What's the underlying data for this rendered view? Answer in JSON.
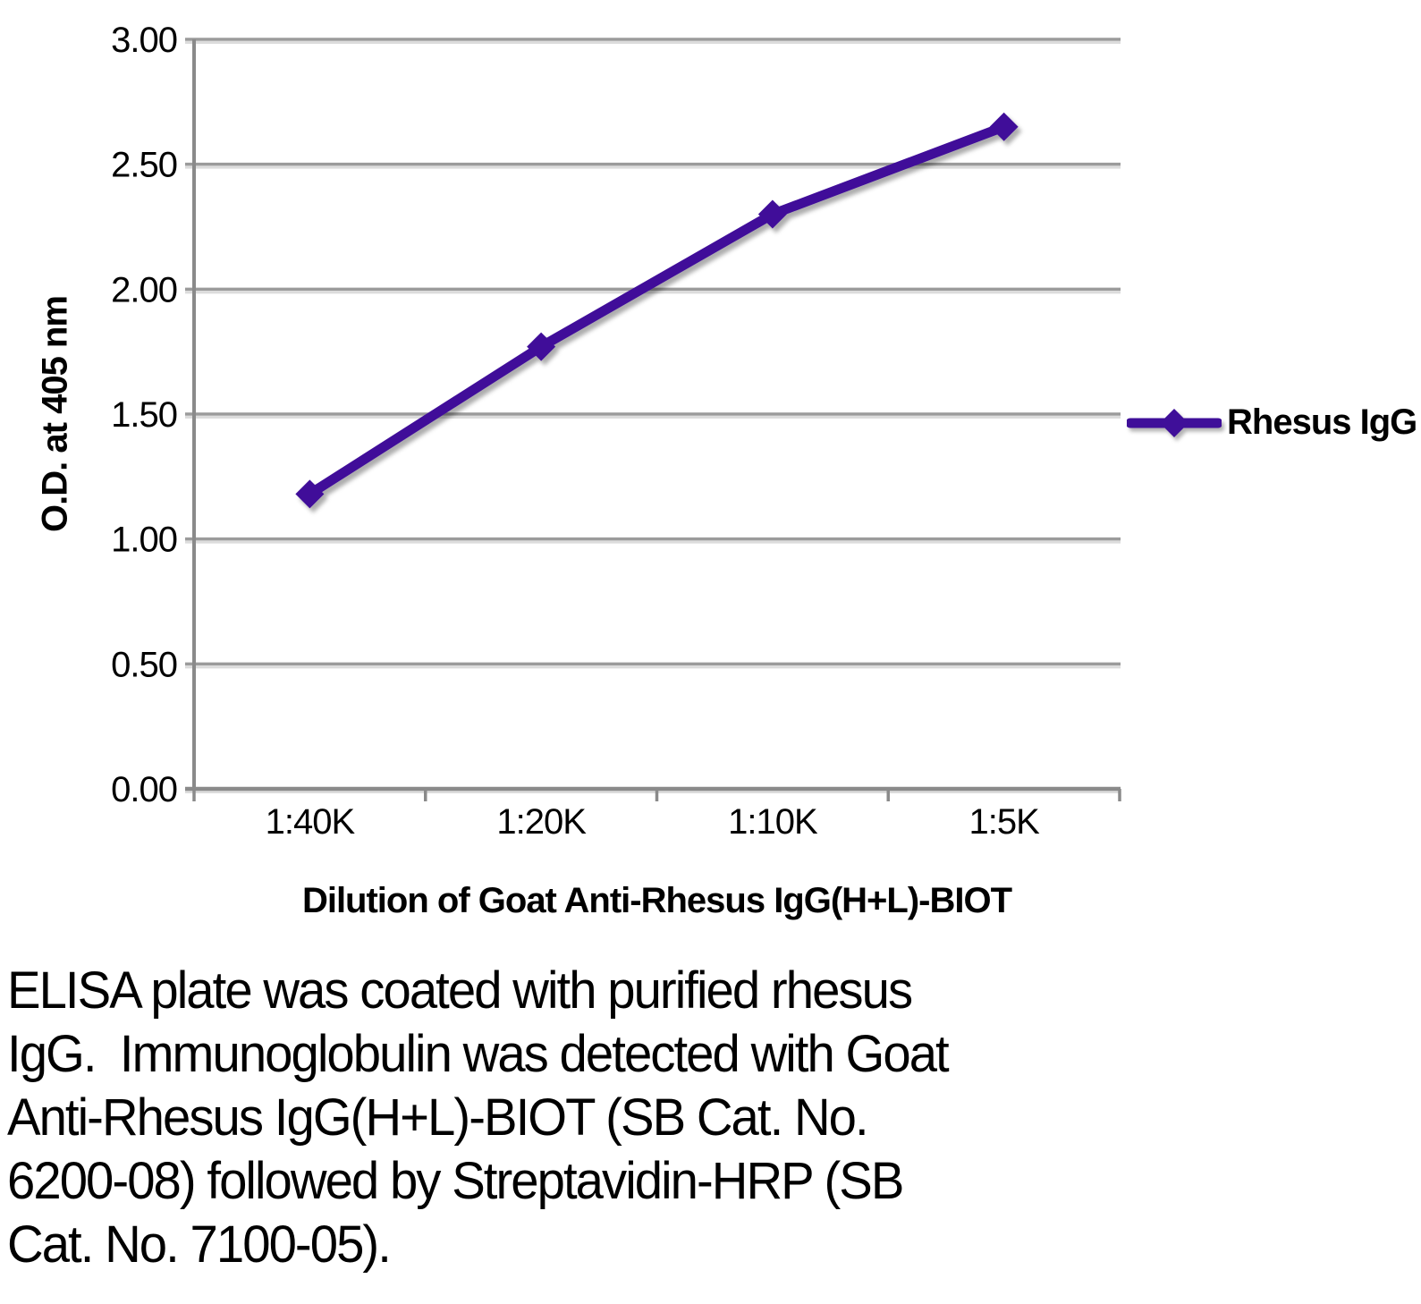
{
  "chart_data": {
    "type": "line",
    "categories": [
      "1:40K",
      "1:20K",
      "1:10K",
      "1:5K"
    ],
    "series": [
      {
        "name": "Rhesus IgG",
        "values": [
          1.18,
          1.77,
          2.3,
          2.65
        ],
        "color": "#3F0F99",
        "marker": "diamond"
      }
    ],
    "xlabel": "Dilution of Goat Anti-Rhesus IgG(H+L)-BIOT",
    "ylabel": "O.D. at 405 nm",
    "ylim": [
      0,
      3
    ],
    "ytick_step": 0.5,
    "ytick_labels": [
      "0.00",
      "0.50",
      "1.00",
      "1.50",
      "2.00",
      "2.50",
      "3.00"
    ],
    "grid": "horizontal",
    "legend_position": "right",
    "grid_color": "#9b9b9b",
    "grid_shadow_color": "#dcdcdc",
    "axis_color": "#8a8a8a",
    "text_color": "#000000",
    "background_color": "#ffffff"
  },
  "caption": {
    "lines": [
      "ELISA plate was coated with purified rhesus",
      "IgG.  Immunoglobulin was detected with Goat",
      "Anti-Rhesus IgG(H+L)-BIOT (SB Cat. No.",
      "6200-08) followed by Streptavidin-HRP (SB",
      "Cat. No. 7100-05)."
    ],
    "full_text": "ELISA plate was coated with purified rhesus IgG.  Immunoglobulin was detected with Goat Anti-Rhesus IgG(H+L)-BIOT (SB Cat. No. 6200-08) followed by Streptavidin-HRP (SB Cat. No. 7100-05)."
  }
}
